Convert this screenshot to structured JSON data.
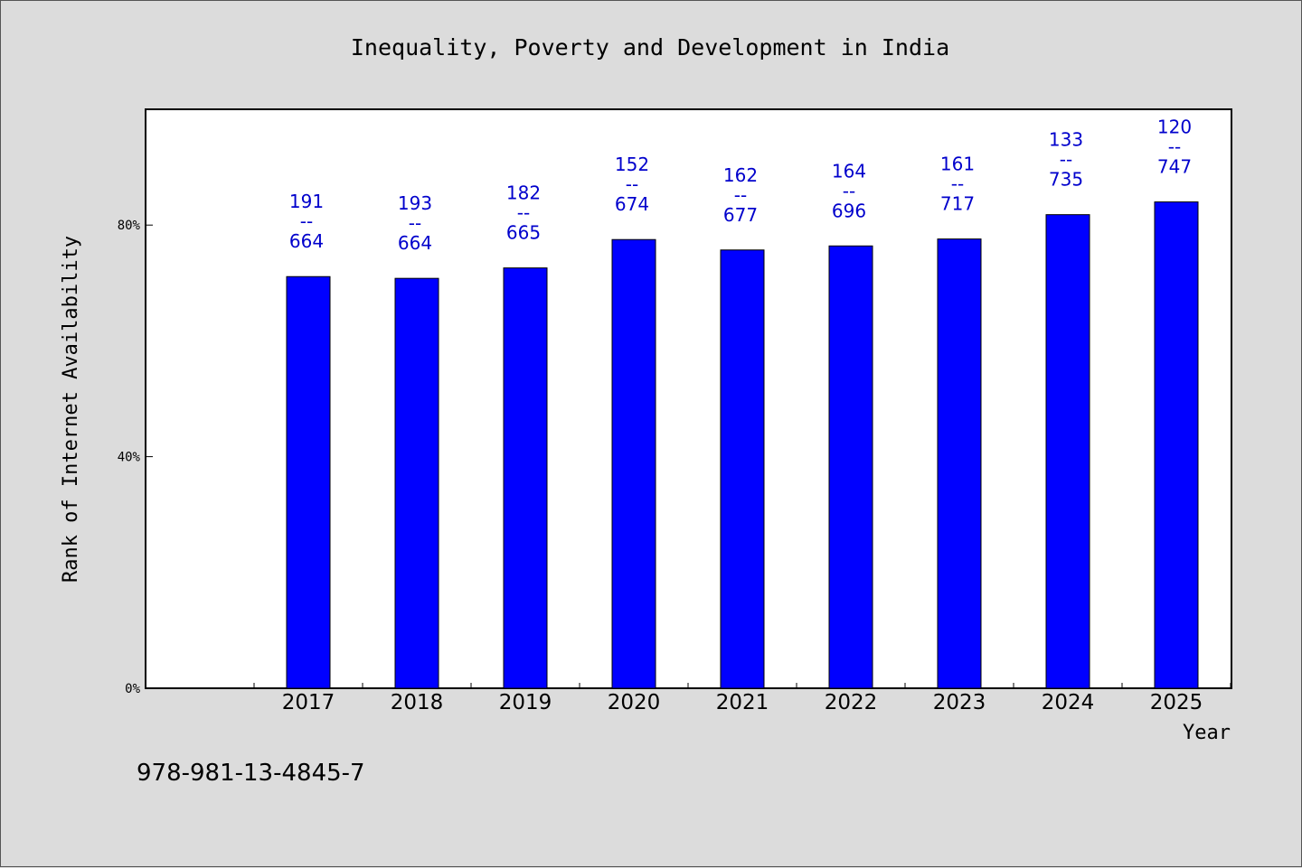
{
  "chart_data": {
    "type": "bar",
    "title": "Inequality, Poverty and Development in India",
    "xlabel": "Year",
    "ylabel": "Rank of Internet Availability",
    "categories": [
      "2017",
      "2018",
      "2019",
      "2020",
      "2021",
      "2022",
      "2023",
      "2024",
      "2025"
    ],
    "values": [
      71.1,
      70.8,
      72.6,
      77.5,
      75.7,
      76.4,
      77.6,
      81.8,
      84.0
    ],
    "data_labels": [
      [
        "191",
        "--",
        "664"
      ],
      [
        "193",
        "--",
        "664"
      ],
      [
        "182",
        "--",
        "665"
      ],
      [
        "152",
        "--",
        "674"
      ],
      [
        "162",
        "--",
        "677"
      ],
      [
        "164",
        "--",
        "696"
      ],
      [
        "161",
        "--",
        "717"
      ],
      [
        "133",
        "--",
        "735"
      ],
      [
        "120",
        "--",
        "747"
      ]
    ],
    "yticks": [
      0,
      40,
      80
    ],
    "ytick_labels": [
      "0%",
      "40%",
      "80%"
    ],
    "ylim": [
      0,
      100
    ],
    "grid": false,
    "bar_color": "#0000ff",
    "label_color": "#0000cc"
  },
  "footer": {
    "isbn": "978-981-13-4845-7"
  }
}
